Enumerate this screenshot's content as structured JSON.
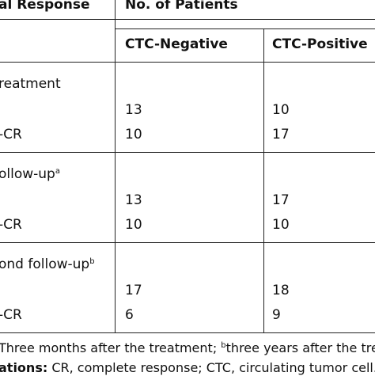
{
  "header": {
    "col1": "al Response",
    "col2": "No. of Patients",
    "sub1": "CTC-Negative",
    "sub2": "CTC-Positive"
  },
  "groups": [
    {
      "label": "reatment",
      "marker": "",
      "rows": [
        {
          "label": "",
          "neg": "13",
          "pos": "10"
        },
        {
          "label": "-CR",
          "neg": "10",
          "pos": "17"
        }
      ]
    },
    {
      "label": "ollow-up",
      "marker": "a",
      "rows": [
        {
          "label": "",
          "neg": "13",
          "pos": "17"
        },
        {
          "label": "-CR",
          "neg": "10",
          "pos": "10"
        }
      ]
    },
    {
      "label": "ond follow-up",
      "marker": "b",
      "rows": [
        {
          "label": "",
          "neg": "17",
          "pos": "18"
        },
        {
          "label": "-CR",
          "neg": "6",
          "pos": "9"
        }
      ]
    }
  ],
  "footnotes": {
    "line1_a": "Three months after the treatment;",
    "line1_marker": "b",
    "line1_b": "three years after the trea",
    "line2_label": "ations:",
    "line2_text": "CR, complete response; CTC, circulating tumor cell."
  }
}
